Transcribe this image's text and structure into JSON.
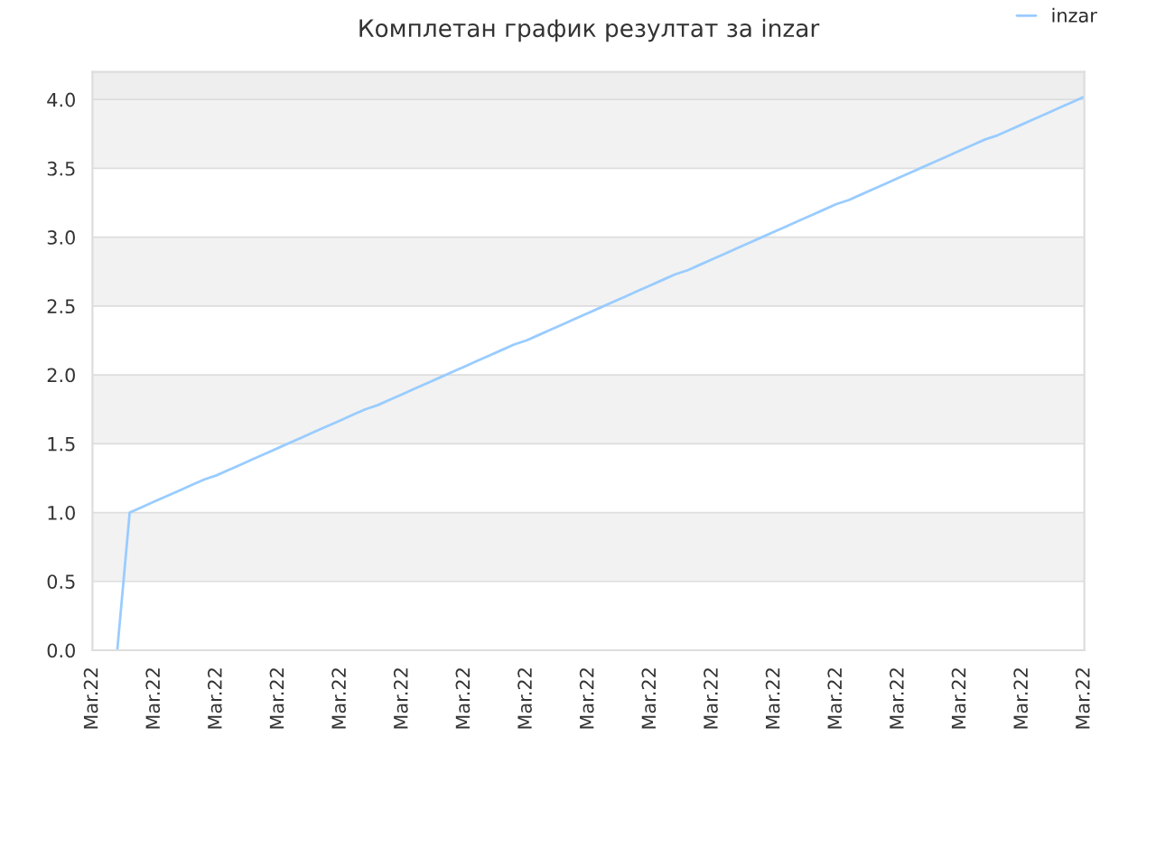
{
  "chart_data": {
    "type": "line",
    "title": "Комплетан график резултат за inzar",
    "categories": [
      "Mar.22",
      null,
      null,
      null,
      null,
      "Mar.22",
      null,
      null,
      null,
      null,
      "Mar.22",
      null,
      null,
      null,
      null,
      "Mar.22",
      null,
      null,
      null,
      null,
      "Mar.22",
      null,
      null,
      null,
      null,
      "Mar.22",
      null,
      null,
      null,
      null,
      "Mar.22",
      null,
      null,
      null,
      null,
      "Mar.22",
      null,
      null,
      null,
      null,
      "Mar.22",
      null,
      null,
      null,
      null,
      "Mar.22",
      null,
      null,
      null,
      null,
      "Mar.22",
      null,
      null,
      null,
      null,
      "Mar.22",
      null,
      null,
      null,
      null,
      "Mar.22",
      null,
      null,
      null,
      null,
      "Mar.22",
      null,
      null,
      null,
      null,
      "Mar.22",
      null,
      null,
      null,
      null,
      "Mar.22",
      null,
      null,
      null,
      null,
      "Mar.22"
    ],
    "series": [
      {
        "name": "inzar",
        "color": "#99ccff",
        "values": [
          null,
          null,
          0,
          1.0,
          1.04,
          1.08,
          1.12,
          1.16,
          1.2,
          1.24,
          1.27,
          1.31,
          1.35,
          1.39,
          1.43,
          1.47,
          1.51,
          1.55,
          1.59,
          1.63,
          1.67,
          1.71,
          1.75,
          1.78,
          1.82,
          1.86,
          1.9,
          1.94,
          1.98,
          2.02,
          2.06,
          2.1,
          2.14,
          2.18,
          2.22,
          2.25,
          2.29,
          2.33,
          2.37,
          2.41,
          2.45,
          2.49,
          2.53,
          2.57,
          2.61,
          2.65,
          2.69,
          2.73,
          2.76,
          2.8,
          2.84,
          2.88,
          2.92,
          2.96,
          3.0,
          3.04,
          3.08,
          3.12,
          3.16,
          3.2,
          3.24,
          3.27,
          3.31,
          3.35,
          3.39,
          3.43,
          3.47,
          3.51,
          3.55,
          3.59,
          3.63,
          3.67,
          3.71,
          3.74,
          3.78,
          3.82,
          3.86,
          3.9,
          3.94,
          3.98,
          4.02
        ]
      }
    ],
    "ylim": [
      0,
      4.2
    ],
    "yticks": [
      {
        "value": 0,
        "label": "0.0"
      },
      0.5,
      {
        "value": 1,
        "label": "1.0"
      },
      1.5,
      {
        "value": 2,
        "label": "2.0"
      },
      2.5,
      {
        "value": 3,
        "label": "3.0"
      },
      3.5,
      {
        "value": 4,
        "label": "4.0"
      }
    ],
    "bands": [
      {
        "axis": "y",
        "from": 0.5,
        "to": 1.0,
        "color": "#f2f2f2"
      },
      {
        "axis": "y",
        "from": 1.5,
        "to": 2.0,
        "color": "#f2f2f2"
      },
      {
        "axis": "y",
        "from": 2.5,
        "to": 3.0,
        "color": "#f2f2f2"
      },
      {
        "axis": "y",
        "from": 3.5,
        "to": 4.0,
        "color": "#f2f2f2"
      },
      {
        "axis": "y",
        "from": 4.0,
        "to": 4.2,
        "color": "#eeeeee"
      }
    ],
    "grid": "y",
    "legend": "top right",
    "marker": "none",
    "line_style": "solid"
  }
}
